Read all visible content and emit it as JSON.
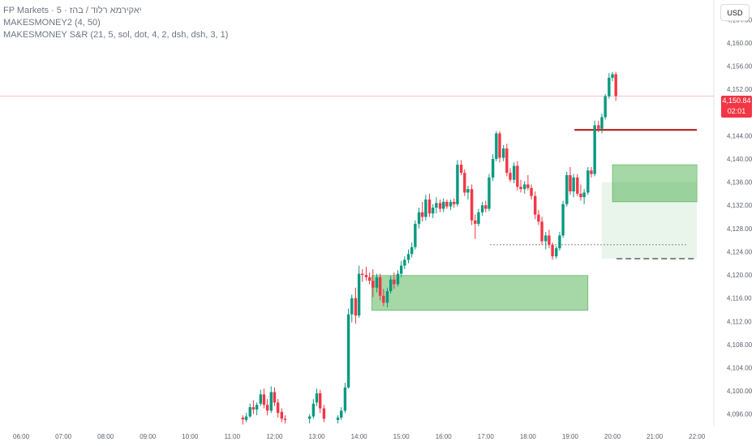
{
  "legend": {
    "line1": "FP Markets · 5 · יאקירמא רלוד / בהז",
    "line2": "MAKESMONEY2 (4, 50)",
    "line3": "MAKESMONEY S&R (21, 5, sol, dot, 4, 2, dsh, dsh, 3, 1)"
  },
  "currency_button": "USD",
  "last_price": {
    "price": "4,150.84",
    "countdown": "02:01"
  },
  "colors": {
    "up": "#089981",
    "down": "#f23645",
    "zone": "#4caf50",
    "resistance": "#b71c1c"
  },
  "chart_data": {
    "type": "candlestick",
    "ylim": [
      4094,
      4166
    ],
    "y_ticks": [
      {
        "v": 4096,
        "label": "4,096.00"
      },
      {
        "v": 4100,
        "label": "4,100.00"
      },
      {
        "v": 4104,
        "label": "4,104.00"
      },
      {
        "v": 4108,
        "label": "4,108.00"
      },
      {
        "v": 4112,
        "label": "4,112.00"
      },
      {
        "v": 4116,
        "label": "4,116.00"
      },
      {
        "v": 4120,
        "label": "4,120.00"
      },
      {
        "v": 4124,
        "label": "4,124.00"
      },
      {
        "v": 4128,
        "label": "4,128.00"
      },
      {
        "v": 4132,
        "label": "4,132.00"
      },
      {
        "v": 4136,
        "label": "4,136.00"
      },
      {
        "v": 4140,
        "label": "4,140.00"
      },
      {
        "v": 4144,
        "label": "4,144.00"
      },
      {
        "v": 4148,
        "label": "4,148.00"
      },
      {
        "v": 4152,
        "label": "4,152.00"
      },
      {
        "v": 4156,
        "label": "4,156.00"
      },
      {
        "v": 4160,
        "label": "4,160.00"
      },
      {
        "v": 4164,
        "label": "4,164.00"
      }
    ],
    "x_ticks": [
      "06:00",
      "07:00",
      "08:00",
      "09:00",
      "10:00",
      "11:00",
      "12:00",
      "13:00",
      "14:00",
      "15:00",
      "16:00",
      "17:00",
      "18:00",
      "19:00",
      "20:00",
      "21:00",
      "22:00"
    ],
    "time_range_hours": [
      5.5,
      22.4
    ],
    "current_price": 4150.84,
    "candles": [
      {
        "t": 11.25,
        "o": 4095.4,
        "h": 4095.8,
        "l": 4094.2,
        "c": 4095.1
      },
      {
        "t": 11.33,
        "o": 4095.0,
        "h": 4096.2,
        "l": 4094.6,
        "c": 4095.6
      },
      {
        "t": 11.42,
        "o": 4095.6,
        "h": 4097.8,
        "l": 4095.4,
        "c": 4097.2
      },
      {
        "t": 11.5,
        "o": 4097.2,
        "h": 4098.4,
        "l": 4096.0,
        "c": 4096.8
      },
      {
        "t": 11.58,
        "o": 4096.8,
        "h": 4098.0,
        "l": 4095.8,
        "c": 4097.6
      },
      {
        "t": 11.67,
        "o": 4097.8,
        "h": 4100.2,
        "l": 4097.4,
        "c": 4099.4
      },
      {
        "t": 11.75,
        "o": 4099.4,
        "h": 4100.4,
        "l": 4097.0,
        "c": 4097.6
      },
      {
        "t": 11.83,
        "o": 4097.6,
        "h": 4098.6,
        "l": 4095.8,
        "c": 4096.6
      },
      {
        "t": 11.92,
        "o": 4096.6,
        "h": 4100.8,
        "l": 4096.2,
        "c": 4099.8
      },
      {
        "t": 12.0,
        "o": 4099.8,
        "h": 4100.6,
        "l": 4097.4,
        "c": 4098.0
      },
      {
        "t": 12.08,
        "o": 4098.0,
        "h": 4098.6,
        "l": 4095.4,
        "c": 4096.2
      },
      {
        "t": 12.17,
        "o": 4096.4,
        "h": 4097.0,
        "l": 4094.6,
        "c": 4095.2
      },
      {
        "t": 12.25,
        "o": 4095.2,
        "h": 4095.8,
        "l": 4094.4,
        "c": 4095.0
      },
      {
        "t": 12.83,
        "o": 4095.2,
        "h": 4096.0,
        "l": 4094.4,
        "c": 4095.6
      },
      {
        "t": 12.92,
        "o": 4095.6,
        "h": 4098.6,
        "l": 4095.2,
        "c": 4097.8
      },
      {
        "t": 13.0,
        "o": 4098.0,
        "h": 4100.4,
        "l": 4097.4,
        "c": 4099.6
      },
      {
        "t": 13.08,
        "o": 4099.6,
        "h": 4100.2,
        "l": 4096.2,
        "c": 4097.0
      },
      {
        "t": 13.17,
        "o": 4097.0,
        "h": 4097.6,
        "l": 4094.6,
        "c": 4095.2
      },
      {
        "t": 13.5,
        "o": 4095.0,
        "h": 4095.8,
        "l": 4094.4,
        "c": 4095.4
      },
      {
        "t": 13.58,
        "o": 4095.4,
        "h": 4097.2,
        "l": 4095.0,
        "c": 4096.6
      },
      {
        "t": 13.67,
        "o": 4096.6,
        "h": 4101.4,
        "l": 4096.2,
        "c": 4100.6
      },
      {
        "t": 13.75,
        "o": 4100.6,
        "h": 4114.2,
        "l": 4100.4,
        "c": 4113.2
      },
      {
        "t": 13.83,
        "o": 4113.2,
        "h": 4116.6,
        "l": 4111.8,
        "c": 4116.0
      },
      {
        "t": 13.92,
        "o": 4116.0,
        "h": 4117.8,
        "l": 4111.6,
        "c": 4113.0
      },
      {
        "t": 14.0,
        "o": 4113.0,
        "h": 4121.6,
        "l": 4112.6,
        "c": 4120.2
      },
      {
        "t": 14.08,
        "o": 4120.2,
        "h": 4121.0,
        "l": 4118.8,
        "c": 4120.0
      },
      {
        "t": 14.17,
        "o": 4120.0,
        "h": 4121.4,
        "l": 4119.0,
        "c": 4119.6
      },
      {
        "t": 14.25,
        "o": 4119.6,
        "h": 4120.4,
        "l": 4118.4,
        "c": 4119.0
      },
      {
        "t": 14.33,
        "o": 4119.0,
        "h": 4121.0,
        "l": 4116.2,
        "c": 4117.8
      },
      {
        "t": 14.42,
        "o": 4117.8,
        "h": 4120.2,
        "l": 4117.0,
        "c": 4119.6
      },
      {
        "t": 14.5,
        "o": 4119.6,
        "h": 4120.2,
        "l": 4115.6,
        "c": 4116.4
      },
      {
        "t": 14.58,
        "o": 4116.4,
        "h": 4117.6,
        "l": 4114.6,
        "c": 4115.2
      },
      {
        "t": 14.67,
        "o": 4115.2,
        "h": 4117.8,
        "l": 4114.4,
        "c": 4117.2
      },
      {
        "t": 14.75,
        "o": 4117.2,
        "h": 4119.8,
        "l": 4116.8,
        "c": 4119.2
      },
      {
        "t": 14.83,
        "o": 4119.2,
        "h": 4120.4,
        "l": 4117.6,
        "c": 4118.4
      },
      {
        "t": 14.92,
        "o": 4118.4,
        "h": 4120.8,
        "l": 4118.0,
        "c": 4120.2
      },
      {
        "t": 15.0,
        "o": 4120.2,
        "h": 4122.4,
        "l": 4119.6,
        "c": 4121.6
      },
      {
        "t": 15.08,
        "o": 4121.6,
        "h": 4123.2,
        "l": 4121.0,
        "c": 4122.6
      },
      {
        "t": 15.17,
        "o": 4122.6,
        "h": 4124.4,
        "l": 4122.0,
        "c": 4123.6
      },
      {
        "t": 15.25,
        "o": 4123.6,
        "h": 4125.6,
        "l": 4123.0,
        "c": 4124.8
      },
      {
        "t": 15.33,
        "o": 4124.8,
        "h": 4129.4,
        "l": 4124.4,
        "c": 4128.8
      },
      {
        "t": 15.42,
        "o": 4128.8,
        "h": 4131.6,
        "l": 4128.0,
        "c": 4130.8
      },
      {
        "t": 15.5,
        "o": 4130.8,
        "h": 4132.6,
        "l": 4129.2,
        "c": 4130.0
      },
      {
        "t": 15.58,
        "o": 4130.0,
        "h": 4133.8,
        "l": 4129.4,
        "c": 4133.0
      },
      {
        "t": 15.67,
        "o": 4133.0,
        "h": 4134.0,
        "l": 4130.0,
        "c": 4130.6
      },
      {
        "t": 15.75,
        "o": 4130.6,
        "h": 4132.2,
        "l": 4129.8,
        "c": 4131.6
      },
      {
        "t": 15.83,
        "o": 4131.6,
        "h": 4133.4,
        "l": 4130.6,
        "c": 4132.4
      },
      {
        "t": 15.92,
        "o": 4132.4,
        "h": 4133.0,
        "l": 4130.8,
        "c": 4131.4
      },
      {
        "t": 16.0,
        "o": 4131.4,
        "h": 4133.2,
        "l": 4130.8,
        "c": 4132.6
      },
      {
        "t": 16.08,
        "o": 4132.6,
        "h": 4133.0,
        "l": 4131.4,
        "c": 4131.8
      },
      {
        "t": 16.17,
        "o": 4131.8,
        "h": 4133.0,
        "l": 4131.2,
        "c": 4132.6
      },
      {
        "t": 16.25,
        "o": 4132.6,
        "h": 4133.2,
        "l": 4131.6,
        "c": 4132.2
      },
      {
        "t": 16.33,
        "o": 4132.2,
        "h": 4139.8,
        "l": 4131.8,
        "c": 4139.0
      },
      {
        "t": 16.42,
        "o": 4139.0,
        "h": 4139.8,
        "l": 4137.2,
        "c": 4137.6
      },
      {
        "t": 16.5,
        "o": 4137.6,
        "h": 4138.2,
        "l": 4133.6,
        "c": 4134.2
      },
      {
        "t": 16.58,
        "o": 4134.2,
        "h": 4135.4,
        "l": 4133.0,
        "c": 4134.8
      },
      {
        "t": 16.67,
        "o": 4134.8,
        "h": 4135.6,
        "l": 4128.6,
        "c": 4129.4
      },
      {
        "t": 16.75,
        "o": 4129.4,
        "h": 4130.4,
        "l": 4126.2,
        "c": 4128.8
      },
      {
        "t": 16.83,
        "o": 4128.8,
        "h": 4131.4,
        "l": 4128.4,
        "c": 4130.8
      },
      {
        "t": 16.92,
        "o": 4130.8,
        "h": 4132.6,
        "l": 4130.2,
        "c": 4132.0
      },
      {
        "t": 17.0,
        "o": 4132.0,
        "h": 4132.8,
        "l": 4130.8,
        "c": 4131.4
      },
      {
        "t": 17.08,
        "o": 4131.4,
        "h": 4137.4,
        "l": 4131.0,
        "c": 4136.8
      },
      {
        "t": 17.17,
        "o": 4136.8,
        "h": 4140.8,
        "l": 4136.2,
        "c": 4140.0
      },
      {
        "t": 17.25,
        "o": 4140.0,
        "h": 4144.8,
        "l": 4139.6,
        "c": 4144.4
      },
      {
        "t": 17.33,
        "o": 4144.4,
        "h": 4144.8,
        "l": 4139.4,
        "c": 4140.2
      },
      {
        "t": 17.42,
        "o": 4140.2,
        "h": 4142.4,
        "l": 4139.6,
        "c": 4141.8
      },
      {
        "t": 17.5,
        "o": 4141.8,
        "h": 4142.6,
        "l": 4137.0,
        "c": 4137.6
      },
      {
        "t": 17.58,
        "o": 4137.6,
        "h": 4138.4,
        "l": 4136.0,
        "c": 4136.4
      },
      {
        "t": 17.67,
        "o": 4136.4,
        "h": 4139.4,
        "l": 4135.8,
        "c": 4138.8
      },
      {
        "t": 17.75,
        "o": 4138.8,
        "h": 4139.6,
        "l": 4134.6,
        "c": 4135.2
      },
      {
        "t": 17.83,
        "o": 4135.2,
        "h": 4136.4,
        "l": 4134.2,
        "c": 4134.8
      },
      {
        "t": 17.92,
        "o": 4134.8,
        "h": 4136.2,
        "l": 4134.0,
        "c": 4135.6
      },
      {
        "t": 18.0,
        "o": 4135.6,
        "h": 4137.2,
        "l": 4134.6,
        "c": 4135.0
      },
      {
        "t": 18.08,
        "o": 4135.0,
        "h": 4135.6,
        "l": 4133.0,
        "c": 4133.6
      },
      {
        "t": 18.17,
        "o": 4133.6,
        "h": 4134.4,
        "l": 4129.6,
        "c": 4130.4
      },
      {
        "t": 18.25,
        "o": 4130.4,
        "h": 4131.2,
        "l": 4128.6,
        "c": 4129.2
      },
      {
        "t": 18.33,
        "o": 4129.2,
        "h": 4130.0,
        "l": 4125.2,
        "c": 4125.8
      },
      {
        "t": 18.42,
        "o": 4125.8,
        "h": 4127.4,
        "l": 4124.4,
        "c": 4126.8
      },
      {
        "t": 18.5,
        "o": 4126.8,
        "h": 4127.8,
        "l": 4124.6,
        "c": 4125.2
      },
      {
        "t": 18.58,
        "o": 4125.2,
        "h": 4125.6,
        "l": 4122.6,
        "c": 4123.2
      },
      {
        "t": 18.67,
        "o": 4123.2,
        "h": 4125.0,
        "l": 4122.8,
        "c": 4124.6
      },
      {
        "t": 18.75,
        "o": 4124.6,
        "h": 4127.4,
        "l": 4124.2,
        "c": 4126.8
      },
      {
        "t": 18.83,
        "o": 4126.8,
        "h": 4132.8,
        "l": 4126.4,
        "c": 4132.2
      },
      {
        "t": 18.92,
        "o": 4132.2,
        "h": 4137.8,
        "l": 4131.8,
        "c": 4137.2
      },
      {
        "t": 19.0,
        "o": 4137.2,
        "h": 4138.6,
        "l": 4133.8,
        "c": 4134.4
      },
      {
        "t": 19.08,
        "o": 4134.4,
        "h": 4137.4,
        "l": 4133.4,
        "c": 4136.8
      },
      {
        "t": 19.17,
        "o": 4136.8,
        "h": 4137.4,
        "l": 4133.6,
        "c": 4134.0
      },
      {
        "t": 19.25,
        "o": 4134.0,
        "h": 4135.6,
        "l": 4132.8,
        "c": 4133.4
      },
      {
        "t": 19.33,
        "o": 4133.4,
        "h": 4134.8,
        "l": 4132.2,
        "c": 4134.2
      },
      {
        "t": 19.42,
        "o": 4134.2,
        "h": 4138.6,
        "l": 4133.8,
        "c": 4138.0
      },
      {
        "t": 19.5,
        "o": 4138.0,
        "h": 4138.6,
        "l": 4136.8,
        "c": 4137.4
      },
      {
        "t": 19.58,
        "o": 4137.4,
        "h": 4146.6,
        "l": 4137.0,
        "c": 4145.8
      },
      {
        "t": 19.67,
        "o": 4145.8,
        "h": 4146.6,
        "l": 4144.6,
        "c": 4145.2
      },
      {
        "t": 19.75,
        "o": 4145.2,
        "h": 4147.8,
        "l": 4144.4,
        "c": 4147.2
      },
      {
        "t": 19.83,
        "o": 4147.2,
        "h": 4151.2,
        "l": 4146.8,
        "c": 4150.8
      },
      {
        "t": 19.92,
        "o": 4150.8,
        "h": 4154.8,
        "l": 4150.4,
        "c": 4154.0
      },
      {
        "t": 20.0,
        "o": 4154.0,
        "h": 4155.0,
        "l": 4153.4,
        "c": 4154.6
      },
      {
        "t": 20.08,
        "o": 4154.6,
        "h": 4155.0,
        "l": 4150.0,
        "c": 4150.84
      }
    ],
    "zones": [
      {
        "t0": 14.3,
        "t1": 19.42,
        "y0": 4119.9,
        "y1": 4113.9,
        "style": "demand"
      },
      {
        "t0": 20.0,
        "t1": 22.0,
        "y0": 4139.0,
        "y1": 4132.6,
        "style": "demand"
      }
    ],
    "resistance": {
      "t0": 19.1,
      "t1": 22.0,
      "y": 4145.0
    },
    "dotted_levels": [
      {
        "t0": 17.1,
        "t1": 21.75,
        "y": 4125.2
      }
    ],
    "dashed_levels": [
      {
        "t0": 20.1,
        "t1": 22.0,
        "y": 4122.8
      }
    ]
  }
}
